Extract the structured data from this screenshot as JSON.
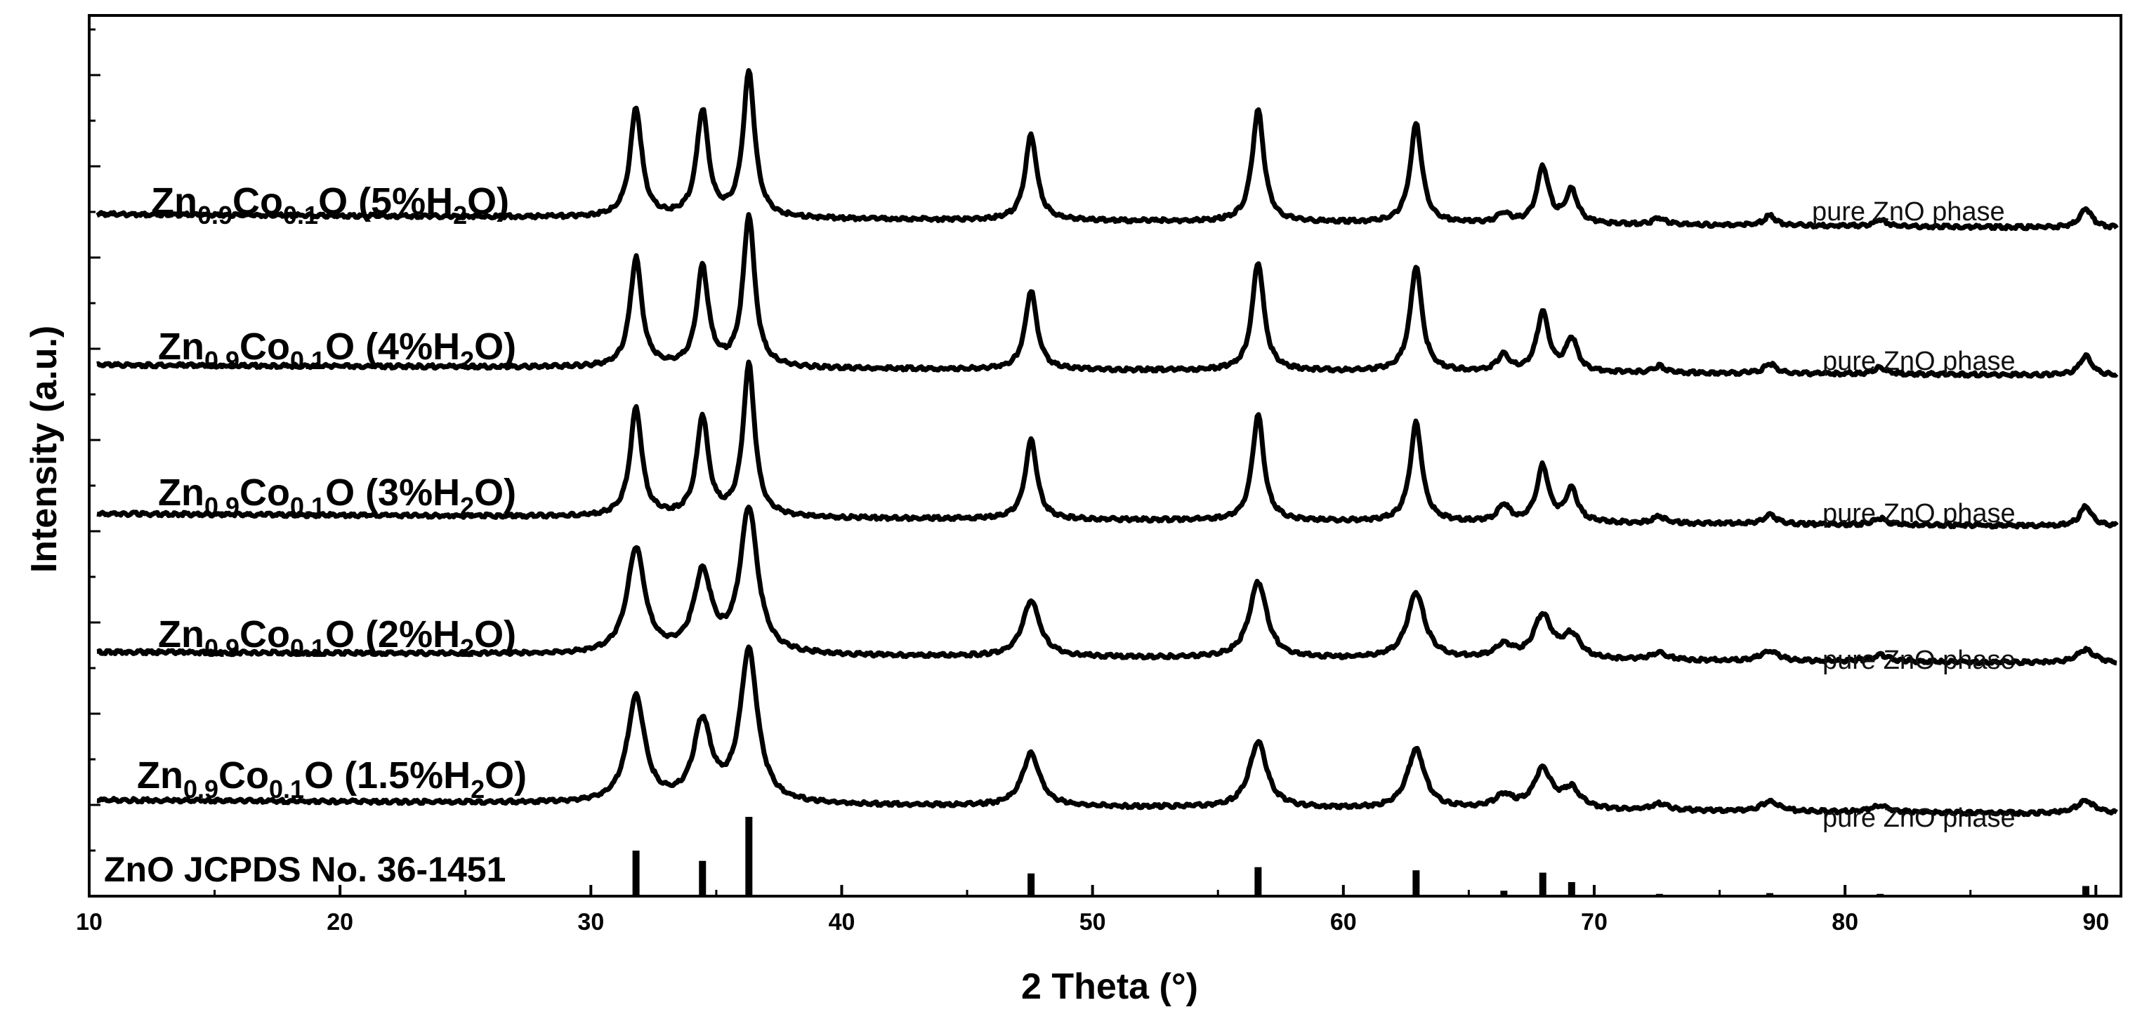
{
  "chart_data": {
    "type": "line",
    "xlabel": "2 Theta (°)",
    "ylabel": "Intensity (a.u.)",
    "xlim": [
      10,
      91
    ],
    "xticks": [
      10,
      20,
      30,
      40,
      50,
      60,
      70,
      80,
      90
    ],
    "yticks_labeled": false,
    "grid": false,
    "peaks_2theta": [
      31.8,
      34.45,
      36.3,
      47.55,
      56.6,
      62.9,
      66.4,
      67.95,
      69.1,
      72.6,
      77.0,
      81.4,
      89.6
    ],
    "series": [
      {
        "label_main": "Zn",
        "label_sub1": "0.9",
        "label_mid": "Co",
        "label_sub2": "0.1",
        "label_rest": "O (5%H",
        "label_sub3": "2",
        "label_end": "O)",
        "phase_label": "pure ZnO phase",
        "intensities": [
          0.33,
          0.32,
          0.44,
          0.26,
          0.34,
          0.3,
          0.03,
          0.17,
          0.1,
          0.02,
          0.03,
          0.02,
          0.06
        ],
        "width": 0.28
      },
      {
        "label_main": "Zn",
        "label_sub1": "0.9",
        "label_mid": "Co",
        "label_sub2": "0.1",
        "label_rest": "O (4%H",
        "label_sub3": "2",
        "label_end": "O)",
        "phase_label": "pure ZnO phase",
        "intensities": [
          0.33,
          0.3,
          0.46,
          0.24,
          0.33,
          0.32,
          0.05,
          0.18,
          0.1,
          0.02,
          0.03,
          0.02,
          0.06
        ],
        "width": 0.28
      },
      {
        "label_main": "Zn",
        "label_sub1": "0.9",
        "label_mid": "Co",
        "label_sub2": "0.1",
        "label_rest": "O (3%H",
        "label_sub3": "2",
        "label_end": "O)",
        "phase_label": "pure ZnO phase",
        "intensities": [
          0.33,
          0.3,
          0.46,
          0.24,
          0.32,
          0.3,
          0.05,
          0.17,
          0.1,
          0.02,
          0.03,
          0.02,
          0.06
        ],
        "width": 0.28
      },
      {
        "label_main": "Zn",
        "label_sub1": "0.9",
        "label_mid": "Co",
        "label_sub2": "0.1",
        "label_rest": "O (2%H",
        "label_sub3": "2",
        "label_end": "O)",
        "phase_label": "pure ZnO phase",
        "intensities": [
          0.32,
          0.24,
          0.44,
          0.17,
          0.23,
          0.2,
          0.04,
          0.13,
          0.07,
          0.02,
          0.03,
          0.02,
          0.04
        ],
        "width": 0.42
      },
      {
        "label_main": "Zn",
        "label_sub1": "0.9",
        "label_mid": "Co",
        "label_sub2": "0.1",
        "label_rest": "O (1.5%H",
        "label_sub3": "2",
        "label_end": "O)",
        "phase_label": "pure ZnO phase",
        "intensities": [
          0.32,
          0.24,
          0.46,
          0.16,
          0.2,
          0.18,
          0.04,
          0.12,
          0.06,
          0.02,
          0.03,
          0.02,
          0.04
        ],
        "width": 0.42
      }
    ],
    "reference": {
      "label": "ZnO JCPDS No. 36-1451",
      "intensities": [
        0.57,
        0.44,
        1.0,
        0.28,
        0.36,
        0.32,
        0.06,
        0.29,
        0.17,
        0.02,
        0.03,
        0.02,
        0.12
      ]
    }
  }
}
